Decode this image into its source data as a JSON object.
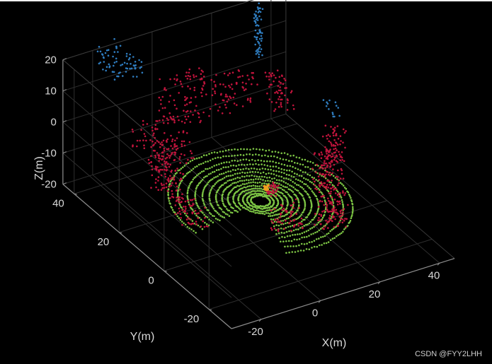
{
  "chart_data": {
    "type": "scatter",
    "plot_kind": "3d-lidar-point-cloud",
    "xlabel": "X(m)",
    "ylabel": "Y(m)",
    "zlabel": "Z(m)",
    "xlim": [
      -30,
      45
    ],
    "ylim": [
      -30,
      45
    ],
    "zlim": [
      -20,
      20
    ],
    "x_ticks": [
      -20,
      0,
      20,
      40
    ],
    "y_ticks": [
      -20,
      0,
      20,
      40
    ],
    "z_ticks": [
      -20,
      -10,
      0,
      10,
      20
    ],
    "x_tick_labels": [
      "-20",
      "0",
      "20",
      "40"
    ],
    "y_tick_labels": [
      "-20",
      "0",
      "20",
      "40"
    ],
    "z_tick_labels": [
      "-20",
      "-10",
      "0",
      "10",
      "20"
    ],
    "grid": true,
    "background": "#000000",
    "axis_color": "#8c8c8c",
    "label_color": "#d9d9d9",
    "series": [
      {
        "kind": "ground-rings",
        "color": "#7cc444",
        "center": [
          10,
          10,
          -16
        ],
        "radii": [
          2.5,
          3.5,
          4.6,
          5.8,
          7.1,
          8.5,
          10,
          11.6,
          13.3,
          15.1,
          17,
          19,
          21.5,
          24
        ]
      },
      {
        "kind": "obstacle-clusters",
        "color": "#c0143c",
        "clusters": [
          [
            -10,
            28,
            -5,
            3,
            10,
            6,
            90
          ],
          [
            -14,
            20,
            -8,
            2,
            6,
            5,
            70
          ],
          [
            -12,
            12,
            -14,
            3,
            4,
            4,
            60
          ],
          [
            8,
            42,
            -2,
            8,
            2,
            8,
            110
          ],
          [
            22,
            38,
            -2,
            6,
            3,
            6,
            70
          ],
          [
            36,
            36,
            -5,
            2,
            4,
            6,
            60
          ],
          [
            30,
            6,
            -10,
            3,
            4,
            6,
            110
          ],
          [
            20,
            -8,
            -10,
            4,
            3,
            6,
            110
          ],
          [
            38,
            14,
            -8,
            2,
            3,
            5,
            60
          ],
          [
            8,
            -4,
            -12,
            5,
            2,
            4,
            60
          ],
          [
            14,
            10,
            -13,
            1.5,
            1.5,
            2,
            40
          ],
          [
            0,
            36,
            -12,
            6,
            3,
            3,
            50
          ]
        ]
      },
      {
        "kind": "high-clusters",
        "color": "#2f7dc0",
        "clusters": [
          [
            -15,
            40,
            18,
            4,
            6,
            3,
            70
          ],
          [
            32,
            40,
            14,
            1,
            1,
            8,
            60
          ],
          [
            40,
            18,
            0,
            1,
            3,
            3,
            14
          ]
        ]
      },
      {
        "kind": "ego-vehicle",
        "color": "#f0a020",
        "clusters": [
          [
            12,
            10,
            -12,
            0.6,
            0.6,
            0.8,
            16
          ]
        ]
      }
    ]
  },
  "watermark": "CSDN @FYY2LHH"
}
